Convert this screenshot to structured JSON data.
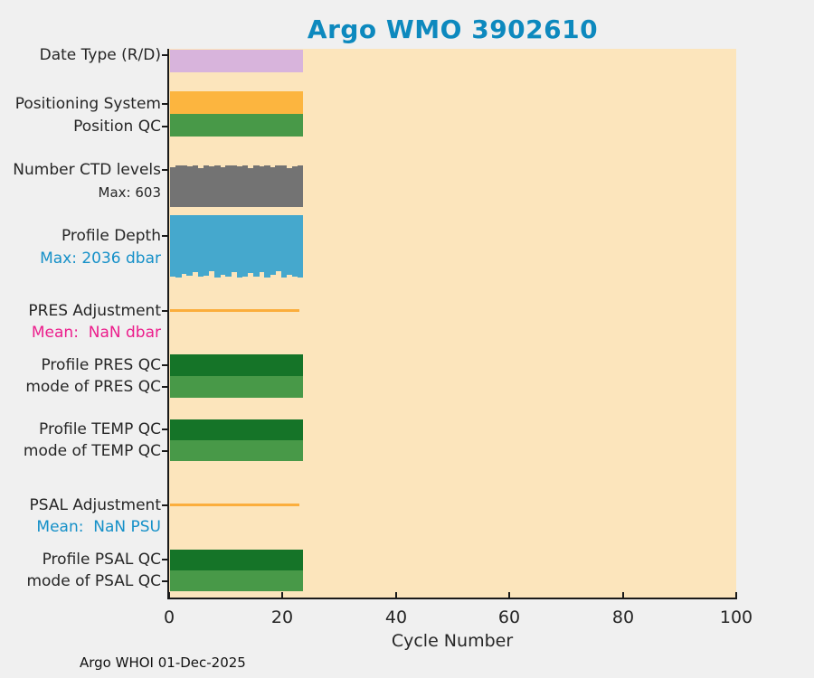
{
  "title": "Argo WMO 3902610",
  "footer": "Argo WHOI 01-Dec-2025",
  "axes": {
    "xlabel": "Cycle Number",
    "x_ticks": [
      "0",
      "20",
      "40",
      "60",
      "80",
      "100"
    ]
  },
  "labels": {
    "date_type": "Date Type (R/D)",
    "pos_system": "Positioning System",
    "position_qc": "Position QC",
    "ctd_levels": "Number CTD levels",
    "ctd_levels_sub": "Max: 603",
    "profile_depth": "Profile Depth",
    "profile_depth_sub": "Max: 2036 dbar",
    "pres_adj": "PRES Adjustment",
    "pres_adj_sub": "Mean:  NaN dbar",
    "profile_pres_qc": "Profile PRES QC",
    "mode_pres_qc": "mode of PRES QC",
    "profile_temp_qc": "Profile TEMP QC",
    "mode_temp_qc": "mode of TEMP QC",
    "psal_adj": "PSAL Adjustment",
    "psal_adj_sub": "Mean:  NaN PSU",
    "profile_psal_qc": "Profile PSAL QC",
    "mode_psal_qc": "mode of PSAL QC"
  },
  "colors": {
    "page_bg": "#f0f0f0",
    "plot_bg": "#fce5bc",
    "title": "#0d89be",
    "label": "#262626",
    "tick_label": "#262626",
    "lavender": "#d8b4dc",
    "orange": "#fcb53f",
    "green": "#489948",
    "gray": "#737373",
    "blue": "#45a8cd",
    "dark_green": "#157428",
    "adj_line": "#fbae3c",
    "info_blue": "#1590c8",
    "magenta": "#ec1e8c",
    "footer": "#111111"
  },
  "chart_data": {
    "type": "bar",
    "orientation": "horizontal-row-bands",
    "title": "Argo WMO 3902610",
    "xlabel": "Cycle Number",
    "xlim": [
      0,
      100
    ],
    "grid": false,
    "legend": false,
    "n_cycles": 24,
    "cycles_shown": [
      1,
      24
    ],
    "series": [
      {
        "name": "Date Type (R/D)",
        "style": "solid-bar",
        "color_key": "lavender",
        "constant": true,
        "note": "same date type (R) for all cycles"
      },
      {
        "name": "Positioning System",
        "style": "solid-bar",
        "color_key": "orange",
        "constant": true
      },
      {
        "name": "Position QC",
        "style": "solid-bar",
        "color_key": "green",
        "constant": true
      },
      {
        "name": "Number CTD levels",
        "style": "per-cycle-bar",
        "color_key": "gray",
        "max": 603,
        "values": [
          571,
          598,
          603,
          589,
          600,
          567,
          603,
          594,
          601,
          574,
          599,
          603,
          585,
          600,
          562,
          602,
          592,
          603,
          578,
          600,
          601,
          565,
          590,
          603
        ]
      },
      {
        "name": "Profile Depth",
        "style": "per-cycle-bar-downward",
        "color_key": "blue",
        "max": 2036,
        "units": "dbar",
        "values": [
          1998,
          2036,
          1905,
          1988,
          1852,
          2021,
          1979,
          1836,
          2030,
          1940,
          2005,
          1871,
          2036,
          1992,
          1902,
          2018,
          1866,
          2033,
          1951,
          1821,
          2025,
          1934,
          1997,
          2036
        ]
      },
      {
        "name": "PRES Adjustment",
        "style": "flat-line",
        "color_key": "adj_line",
        "constant_value": 0,
        "mean": "NaN dbar"
      },
      {
        "name": "Profile PRES QC",
        "style": "solid-bar",
        "color_key": "dark_green",
        "constant": true
      },
      {
        "name": "mode of PRES QC",
        "style": "solid-bar",
        "color_key": "green",
        "constant": true
      },
      {
        "name": "Profile TEMP QC",
        "style": "solid-bar",
        "color_key": "dark_green",
        "constant": true
      },
      {
        "name": "mode of TEMP QC",
        "style": "solid-bar",
        "color_key": "green",
        "constant": true
      },
      {
        "name": "PSAL Adjustment",
        "style": "flat-line",
        "color_key": "adj_line",
        "constant_value": 0,
        "mean": "NaN PSU"
      },
      {
        "name": "Profile PSAL QC",
        "style": "solid-bar",
        "color_key": "dark_green",
        "constant": true
      },
      {
        "name": "mode of PSAL QC",
        "style": "solid-bar",
        "color_key": "green",
        "constant": true
      }
    ]
  }
}
